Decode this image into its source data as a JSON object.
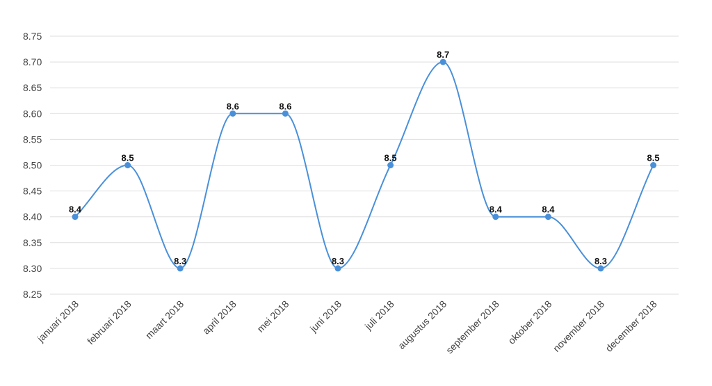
{
  "chart_data": {
    "type": "line",
    "title": "",
    "xlabel": "",
    "ylabel": "",
    "categories": [
      "januari 2018",
      "februari 2018",
      "maart 2018",
      "april 2018",
      "mei 2018",
      "juni 2018",
      "juli 2018",
      "augustus 2018",
      "september 2018",
      "oktober 2018",
      "november 2018",
      "december 2018"
    ],
    "series": [
      {
        "values": [
          8.4,
          8.5,
          8.3,
          8.6,
          8.6,
          8.3,
          8.5,
          8.7,
          8.4,
          8.4,
          8.3,
          8.5
        ]
      }
    ],
    "data_labels": [
      "8.4",
      "8.5",
      "8.3",
      "8.6",
      "8.6",
      "8.3",
      "8.5",
      "8.7",
      "8.4",
      "8.4",
      "8.3",
      "8.5"
    ],
    "ylim": [
      8.25,
      8.75
    ],
    "yticks": [
      "8.25",
      "8.30",
      "8.35",
      "8.40",
      "8.45",
      "8.50",
      "8.55",
      "8.60",
      "8.65",
      "8.70",
      "8.75"
    ],
    "grid": true,
    "smooth": true,
    "legend": "none",
    "colors": {
      "line": "#4a90d9",
      "grid": "#dedede"
    }
  }
}
